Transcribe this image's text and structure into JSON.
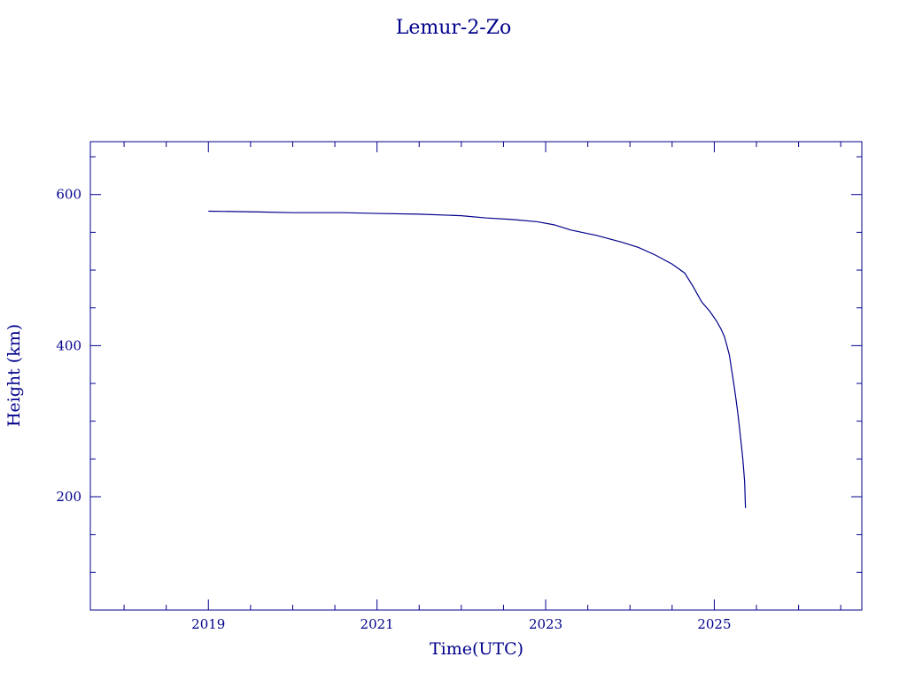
{
  "colors": {
    "ink": "#00008b",
    "background": "#ffffff"
  },
  "chart_data": {
    "type": "line",
    "title": "Lemur-2-Zo",
    "xlabel": "Time(UTC)",
    "ylabel": "Height (km)",
    "xlim": [
      2017.6,
      2026.75
    ],
    "ylim": [
      50,
      670
    ],
    "x_major_ticks": [
      2019,
      2021,
      2023,
      2025
    ],
    "x_tick_labels": [
      "2019",
      "2021",
      "2023",
      "2025"
    ],
    "x_minor_step": 0.5,
    "y_major_ticks": [
      200,
      400,
      600
    ],
    "y_tick_labels": [
      "200",
      "400",
      "600"
    ],
    "y_minor_step": 50,
    "grid": false,
    "legend": "none",
    "series": [
      {
        "x": [
          2019.0,
          2019.6,
          2020.0,
          2020.6,
          2021.0,
          2021.5,
          2022.0,
          2022.3,
          2022.6,
          2022.9,
          2023.1,
          2023.3,
          2023.6,
          2023.9,
          2024.1,
          2024.3,
          2024.5,
          2024.65,
          2024.75,
          2024.85,
          2024.95,
          2025.03,
          2025.08,
          2025.12,
          2025.15,
          2025.18,
          2025.2,
          2025.22,
          2025.24,
          2025.26,
          2025.28,
          2025.3,
          2025.32,
          2025.34,
          2025.36,
          2025.37
        ],
        "y": [
          578,
          577,
          576,
          576,
          575,
          574,
          572,
          569,
          567,
          564,
          560,
          553,
          546,
          537,
          530,
          520,
          508,
          496,
          478,
          458,
          445,
          432,
          422,
          412,
          400,
          387,
          372,
          358,
          343,
          327,
          310,
          290,
          270,
          248,
          220,
          185
        ]
      }
    ]
  }
}
